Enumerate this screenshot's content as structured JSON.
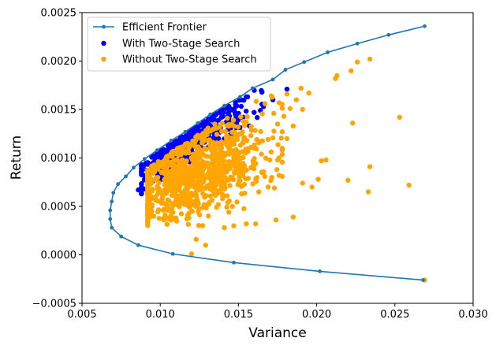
{
  "chart_data": {
    "type": "scatter",
    "xlabel": "Variance",
    "ylabel": "Return",
    "xlim": [
      0.005,
      0.03
    ],
    "ylim": [
      -0.0005,
      0.0025
    ],
    "xticks": [
      0.005,
      0.01,
      0.015,
      0.02,
      0.025,
      0.03
    ],
    "xtick_labels": [
      "0.005",
      "0.010",
      "0.015",
      "0.020",
      "0.025",
      "0.030"
    ],
    "yticks": [
      -0.0005,
      0.0,
      0.0005,
      0.001,
      0.0015,
      0.002,
      0.0025
    ],
    "ytick_labels": [
      "−0.0005",
      "0.0000",
      "0.0005",
      "0.0010",
      "0.0015",
      "0.0020",
      "0.0025"
    ],
    "grid": false,
    "legend_position": "top-left",
    "legend": [
      "Efficient Frontier",
      "With Two-Stage Search",
      "Without Two-Stage Search"
    ],
    "series": [
      {
        "name": "Efficient Frontier",
        "kind": "line-with-markers",
        "color": "#1f77b4",
        "points": [
          [
            0.0269,
            0.00236
          ],
          [
            0.0246,
            0.00227
          ],
          [
            0.0226,
            0.00218
          ],
          [
            0.0207,
            0.00209
          ],
          [
            0.0192,
            0.00199
          ],
          [
            0.018,
            0.00191
          ],
          [
            0.0172,
            0.00181
          ],
          [
            0.0159,
            0.00172
          ],
          [
            0.0151,
            0.00163
          ],
          [
            0.0141,
            0.00154
          ],
          [
            0.0132,
            0.00145
          ],
          [
            0.0124,
            0.00136
          ],
          [
            0.0116,
            0.00127
          ],
          [
            0.0107,
            0.00118
          ],
          [
            0.0098,
            0.00108
          ],
          [
            0.009,
            0.00099
          ],
          [
            0.0083,
            0.0009
          ],
          [
            0.0078,
            0.00081
          ],
          [
            0.0073,
            0.00073
          ],
          [
            0.007,
            0.00064
          ],
          [
            0.0069,
            0.00055
          ],
          [
            0.0068,
            0.00046
          ],
          [
            0.0068,
            0.00037
          ],
          [
            0.0069,
            0.00028
          ],
          [
            0.0075,
            0.00019
          ],
          [
            0.0086,
            0.0001
          ],
          [
            0.0108,
            1e-05
          ],
          [
            0.0147,
            -8e-05
          ],
          [
            0.0202,
            -0.00017
          ],
          [
            0.0268,
            -0.00026
          ]
        ]
      },
      {
        "name": "With Two-Stage Search",
        "kind": "scatter",
        "color": "#0000ff",
        "n": 420,
        "seed": 7,
        "x_center": 0.0118,
        "x_spread": 0.0018,
        "band_above_frontier": [
          3e-05,
          0.00035
        ],
        "extra_points": [
          [
            0.0086,
            0.00067
          ],
          [
            0.0181,
            0.00171
          ],
          [
            0.0166,
            0.00153
          ],
          [
            0.0164,
            0.00149
          ],
          [
            0.0172,
            0.0016
          ],
          [
            0.0153,
            0.00142
          ],
          [
            0.016,
            0.00147
          ],
          [
            0.0157,
            0.00133
          ],
          [
            0.0148,
            0.0014
          ],
          [
            0.0155,
            0.00163
          ]
        ]
      },
      {
        "name": "Without Two-Stage Search",
        "kind": "scatter",
        "color": "#ffa500",
        "n": 950,
        "seed": 13,
        "x_center": 0.0123,
        "x_spread": 0.0022,
        "y_center": 0.00085,
        "y_spread": 0.00022,
        "extra_points": [
          [
            0.0269,
            -0.00026
          ],
          [
            0.0234,
            0.00202
          ],
          [
            0.0226,
            0.00199
          ],
          [
            0.0213,
            0.00185
          ],
          [
            0.0212,
            0.00182
          ],
          [
            0.0222,
            0.0019
          ],
          [
            0.0253,
            0.00142
          ],
          [
            0.0223,
            0.00136
          ],
          [
            0.0259,
            0.00072
          ],
          [
            0.0233,
            0.00065
          ],
          [
            0.0234,
            0.00091
          ],
          [
            0.022,
            0.00077
          ],
          [
            0.0206,
            0.00098
          ],
          [
            0.0203,
            0.00097
          ],
          [
            0.0201,
            0.00078
          ],
          [
            0.0191,
            0.00074
          ],
          [
            0.0197,
            0.0007
          ],
          [
            0.0185,
            0.00039
          ],
          [
            0.0174,
            0.00036
          ],
          [
            0.0161,
            0.00032
          ],
          [
            0.0155,
            0.00032
          ],
          [
            0.0147,
            0.0003
          ],
          [
            0.0141,
            0.00028
          ],
          [
            0.012,
            1e-05
          ],
          [
            0.0129,
            0.0001
          ],
          [
            0.0123,
            0.00016
          ],
          [
            0.0185,
            0.00133
          ],
          [
            0.0191,
            0.0015
          ],
          [
            0.0195,
            0.00167
          ],
          [
            0.019,
            0.00172
          ],
          [
            0.0181,
            0.00166
          ],
          [
            0.0187,
            0.0016
          ],
          [
            0.0171,
            0.00164
          ],
          [
            0.0176,
            0.00157
          ],
          [
            0.0167,
            0.00156
          ],
          [
            0.0175,
            0.00135
          ],
          [
            0.0181,
            0.0012
          ],
          [
            0.0178,
            0.00108
          ],
          [
            0.0176,
            0.00082
          ],
          [
            0.0173,
            0.00069
          ],
          [
            0.0169,
            0.0007
          ],
          [
            0.0165,
            0.00085
          ],
          [
            0.017,
            0.00098
          ],
          [
            0.016,
            0.0011
          ],
          [
            0.0158,
            0.0009
          ],
          [
            0.0163,
            0.00065
          ],
          [
            0.0152,
            0.00063
          ],
          [
            0.0179,
            0.00143
          ],
          [
            0.0183,
            0.00151
          ]
        ]
      }
    ]
  }
}
